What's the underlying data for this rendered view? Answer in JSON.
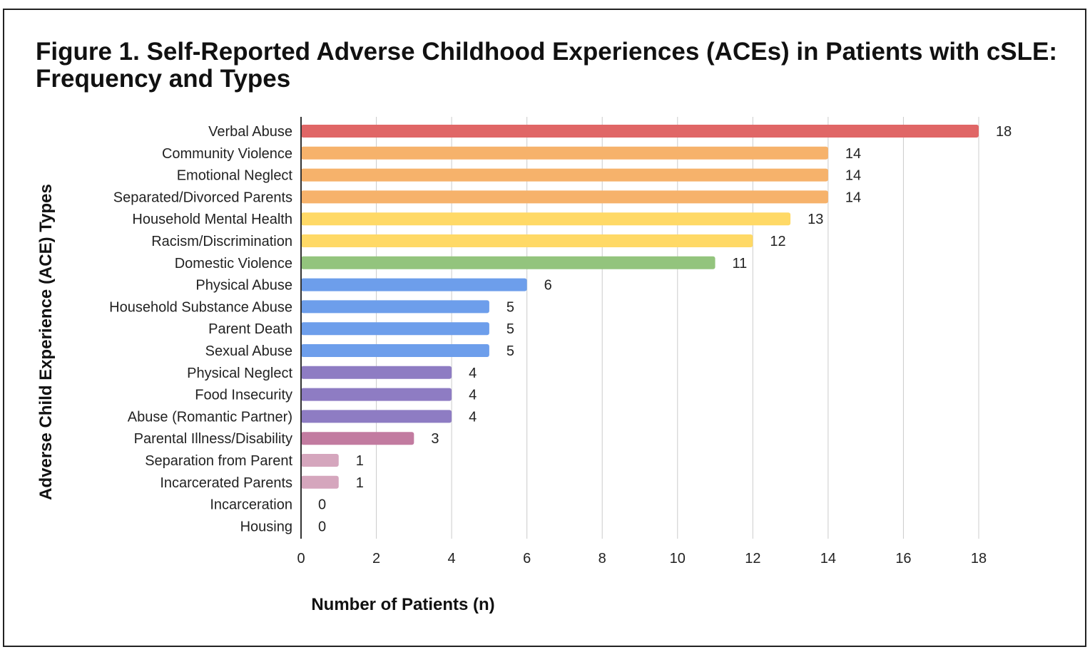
{
  "chart_data": {
    "type": "bar",
    "orientation": "horizontal",
    "title": "Figure 1. Self-Reported Adverse Childhood Experiences (ACEs) in Patients with cSLE: Frequency and Types",
    "xlabel": "Number of Patients (n)",
    "ylabel": "Adverse Child Experience (ACE) Types",
    "xlim": [
      0,
      18
    ],
    "xticks": [
      0,
      2,
      4,
      6,
      8,
      10,
      12,
      14,
      16,
      18
    ],
    "grid": "vertical",
    "legend": "none",
    "categories": [
      "Verbal Abuse",
      "Community Violence",
      "Emotional Neglect",
      "Separated/Divorced Parents",
      "Household Mental Health",
      "Racism/Discrimination",
      "Domestic Violence",
      "Physical Abuse",
      "Household Substance Abuse",
      "Parent Death",
      "Sexual Abuse",
      "Physical Neglect",
      "Food Insecurity",
      "Abuse (Romantic Partner)",
      "Parental Illness/Disability",
      "Separation from Parent",
      "Incarcerated Parents",
      "Incarceration",
      "Housing"
    ],
    "values": [
      18,
      14,
      14,
      14,
      13,
      12,
      11,
      6,
      5,
      5,
      5,
      4,
      4,
      4,
      3,
      1,
      1,
      0,
      0
    ],
    "colors": [
      "#e06666",
      "#f6b26b",
      "#f6b26b",
      "#f6b26b",
      "#ffd966",
      "#ffd966",
      "#93c47d",
      "#6d9eeb",
      "#6d9eeb",
      "#6d9eeb",
      "#6d9eeb",
      "#8e7cc3",
      "#8e7cc3",
      "#8e7cc3",
      "#c27ba0",
      "#d5a6bd",
      "#d5a6bd",
      "#d5a6bd",
      "#d5a6bd"
    ],
    "gridline_color": "#cccccc",
    "axis_color": "#333333"
  }
}
